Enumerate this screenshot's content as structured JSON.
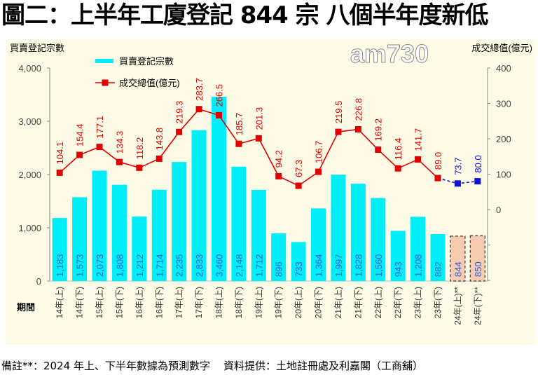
{
  "title": "圖二：上半年工廈登記 844 宗  八個半年度新低",
  "logo": "am730",
  "footer": "備註**：2024 年上、下半年數據為預測數字    資料提供：土地註冊處及利嘉閣（工商舖）",
  "colors": {
    "bars": "#00eef8",
    "forecast_bars": "#f7cbb0",
    "line": "#e00000",
    "forecast_line": "#1010dd",
    "bar_labels": "#3060d8",
    "background": "#fdfbe6"
  },
  "chart_data": {
    "type": "bar+line",
    "xlabel": "期間",
    "ylabel_left": "買賣登記宗數",
    "ylabel_right": "成交總值(億元)",
    "ylim_left": [
      0,
      4000
    ],
    "yticks_left": [
      "0",
      "1,000",
      "2,000",
      "3,000",
      "4,000"
    ],
    "ylim_right": [
      0,
      400
    ],
    "yticks_right": [
      "0",
      "100",
      "200",
      "300",
      "400"
    ],
    "legend_placement": "top-left",
    "categories": [
      "14年(上)",
      "14年(下)",
      "15年(上)",
      "15年(下)",
      "16年(上)",
      "16年(下)",
      "17年(上)",
      "17年(下)",
      "18年(上)",
      "18年(下)",
      "19年(上)",
      "19年(下)",
      "20年(上)",
      "20年(下)",
      "21年(上)",
      "21年(下)",
      "22年(上)",
      "22年(下)",
      "23年(上)",
      "23年(下)",
      "24年(上)**",
      "24年(下)**"
    ],
    "series": [
      {
        "name": "買賣登記宗數",
        "type": "bar",
        "axis": "left",
        "values": [
          1183,
          1573,
          2073,
          1808,
          1212,
          1714,
          2235,
          2833,
          3460,
          2148,
          1712,
          896,
          733,
          1364,
          1997,
          1828,
          1560,
          943,
          1208,
          882,
          844,
          850
        ],
        "labels": [
          "1,183",
          "1,573",
          "2,073",
          "1,808",
          "1,212",
          "1,714",
          "2,235",
          "2,833",
          "3,460",
          "2,148",
          "1,712",
          "896",
          "733",
          "1,364",
          "1,997",
          "1,828",
          "1,560",
          "943",
          "1,208",
          "882",
          "844",
          "850"
        ],
        "forecast_from_index": 20
      },
      {
        "name": "成交總值(億元)",
        "type": "line",
        "axis": "right",
        "values": [
          104.1,
          154.4,
          177.1,
          134.3,
          118.2,
          143.8,
          219.3,
          283.7,
          266.5,
          185.7,
          201.3,
          94.2,
          67.3,
          106.7,
          219.5,
          226.8,
          169.2,
          116.4,
          141.7,
          89.0,
          73.7,
          80.0
        ],
        "labels": [
          "104.1",
          "154.4",
          "177.1",
          "134.3",
          "118.2",
          "143.8",
          "219.3",
          "283.7",
          "266.5",
          "185.7",
          "201.3",
          "94.2",
          "67.3",
          "106.7",
          "219.5",
          "226.8",
          "169.2",
          "116.4",
          "141.7",
          "89.0",
          "73.7",
          "80.0"
        ],
        "forecast_from_index": 20
      }
    ]
  }
}
